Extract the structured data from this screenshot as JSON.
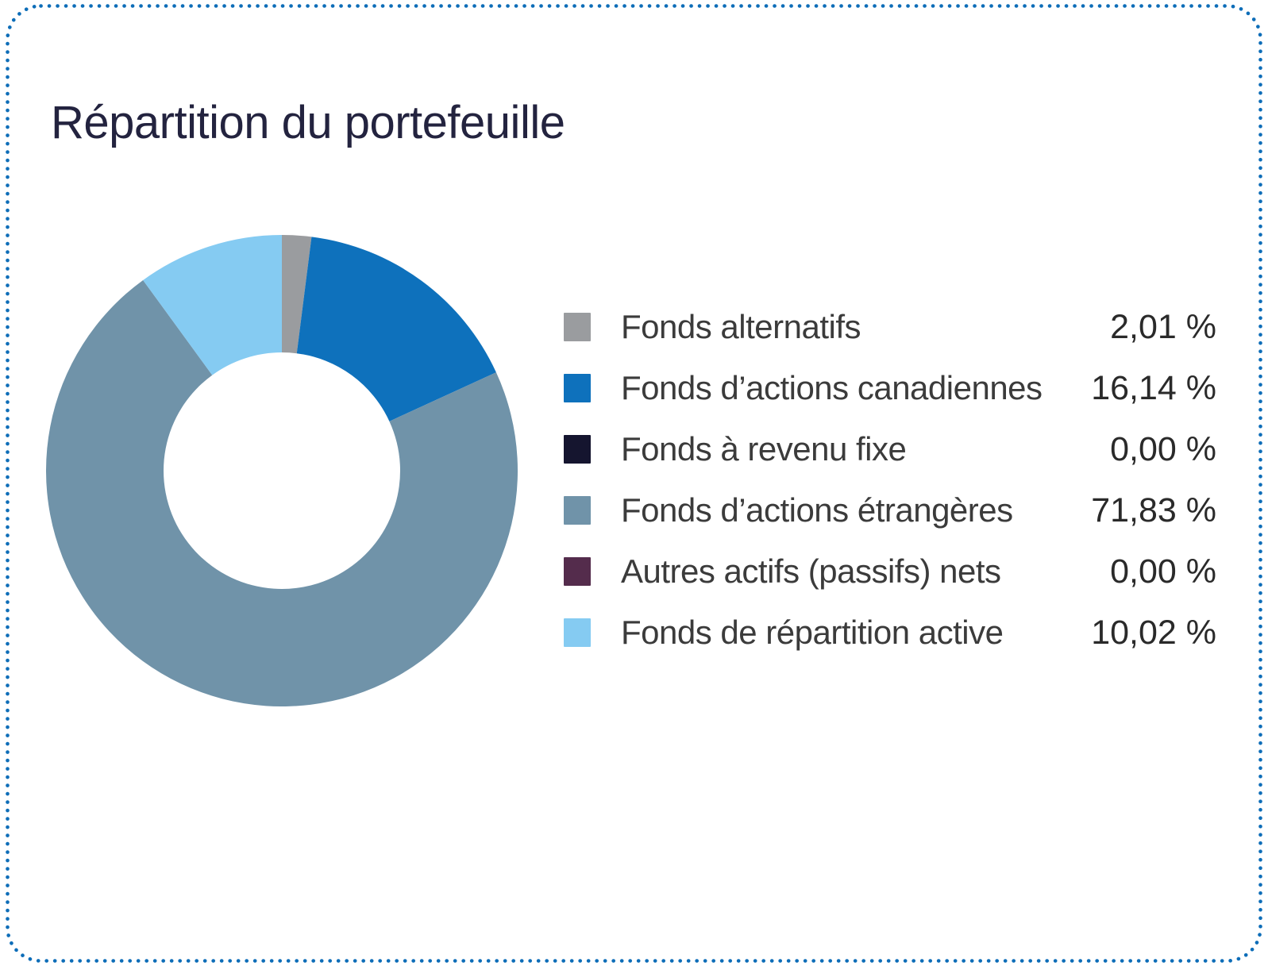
{
  "card": {
    "title": "Répartition du portefeuille",
    "border_color": "#0D6DB8",
    "background_color": "#FFFFFF",
    "title_color": "#23233F"
  },
  "chart_data": {
    "type": "pie",
    "subtype": "donut",
    "title": "Répartition du portefeuille",
    "start_angle_deg": 0,
    "direction": "clockwise",
    "inner_radius_ratio": 0.5,
    "legend_position": "right",
    "unit": "%",
    "series": [
      {
        "label": "Fonds alternatifs",
        "value": 2.01,
        "display": "2,01 %",
        "color": "#9A9C9F"
      },
      {
        "label": "Fonds d’actions canadiennes",
        "value": 16.14,
        "display": "16,14 %",
        "color": "#0E71BC"
      },
      {
        "label": "Fonds à revenu fixe",
        "value": 0.0,
        "display": "0,00 %",
        "color": "#15152F"
      },
      {
        "label": "Fonds d’actions étrangères",
        "value": 71.83,
        "display": "71,83 %",
        "color": "#7093A9"
      },
      {
        "label": "Autres actifs (passifs) nets",
        "value": 0.0,
        "display": "0,00 %",
        "color": "#542C4C"
      },
      {
        "label": "Fonds de répartition active",
        "value": 10.02,
        "display": "10,02 %",
        "color": "#85CBF2"
      }
    ]
  }
}
